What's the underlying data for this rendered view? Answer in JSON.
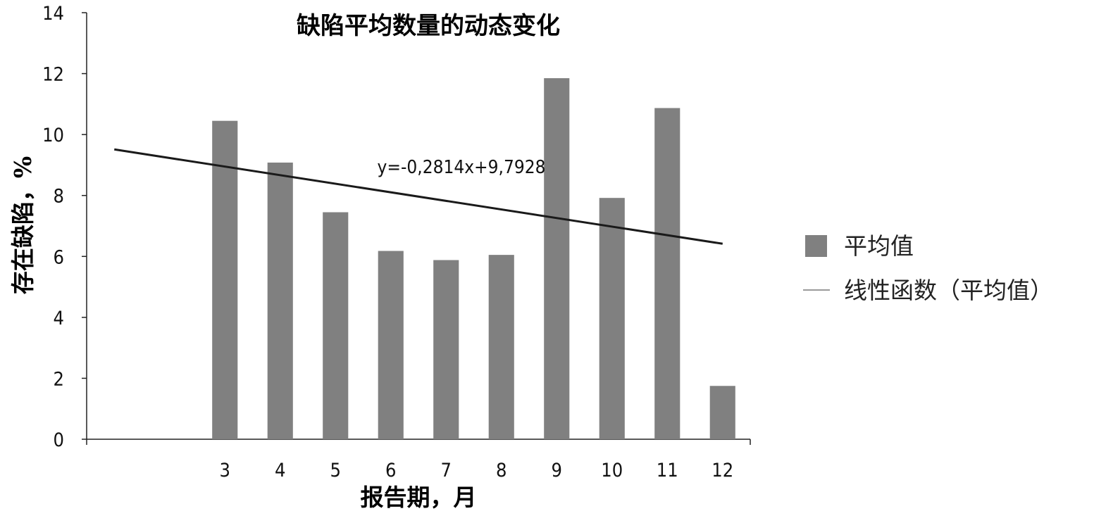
{
  "chart_data": {
    "type": "bar",
    "title": "缺陷平均数量的动态变化",
    "xlabel": "报告期，月",
    "ylabel": "存在缺陷，%",
    "categories": [
      "",
      "",
      "3",
      "4",
      "5",
      "6",
      "7",
      "8",
      "9",
      "10",
      "11",
      "12"
    ],
    "series": [
      {
        "name": "平均值",
        "values": [
          null,
          null,
          10.45,
          9.08,
          7.45,
          6.18,
          5.88,
          6.05,
          11.85,
          7.92,
          10.87,
          1.75
        ],
        "color": "#808080"
      }
    ],
    "trendline": {
      "name": "线性函数（平均值）",
      "slope": -0.2814,
      "intercept": 9.7928,
      "equation": "y=-0,2814x+9,7928",
      "color": "#1a1a1a"
    },
    "ylim": [
      0,
      14
    ],
    "yticks": [
      "0",
      "2",
      "4",
      "6",
      "8",
      "10",
      "12",
      "14"
    ],
    "grid": false,
    "legend_position": "right"
  }
}
